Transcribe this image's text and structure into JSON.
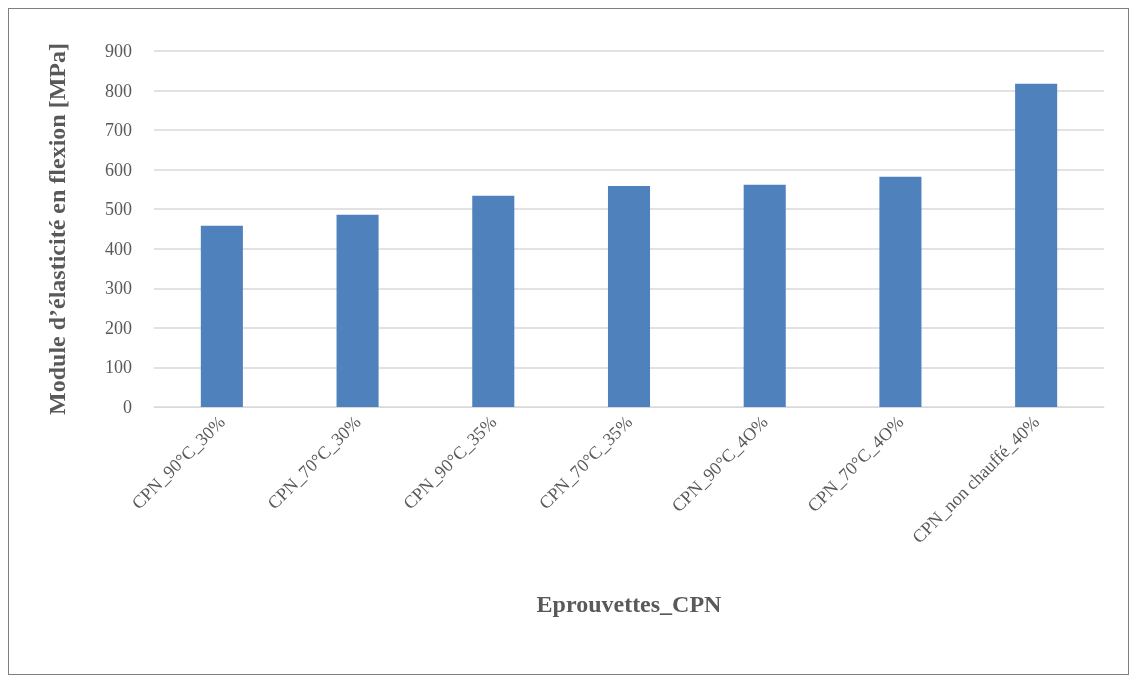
{
  "chart_data": {
    "type": "bar",
    "xlabel": "Eprouvettes_CPN",
    "ylabel": "Module d’élasticité en flexion [MPa]",
    "categories": [
      "CPN_90°C_30%",
      "CPN_70°C_30%",
      "CPN_90°C_35%",
      "CPN_70°C_35%",
      "CPN_90°C_4O%",
      "CPN_70°C_4O%",
      "CPN_non chauffé_40%"
    ],
    "values": [
      458,
      486,
      534,
      559,
      562,
      582,
      817
    ],
    "color": "#4f81bd",
    "ylim": [
      0,
      900
    ],
    "yticks": [
      0,
      100,
      200,
      300,
      400,
      500,
      600,
      700,
      800,
      900
    ],
    "grid": "y"
  }
}
